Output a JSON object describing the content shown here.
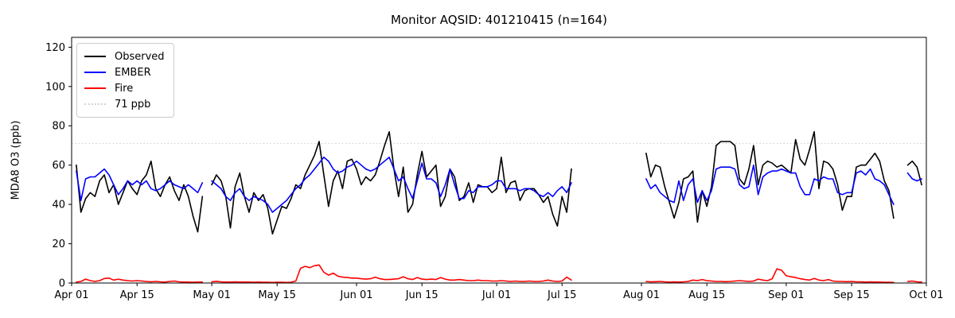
{
  "figure": {
    "title": "Monitor AQSID: 401210415 (n=164)",
    "ylabel": "MDA8 O3 (ppb)",
    "background": "#ffffff"
  },
  "legend": [
    {
      "label": "Observed",
      "color": "#000000",
      "style": "solid"
    },
    {
      "label": "EMBER",
      "color": "#0000ff",
      "style": "solid"
    },
    {
      "label": "Fire",
      "color": "#ff0000",
      "style": "solid"
    },
    {
      "label": "71 ppb",
      "color": "#d3d3d3",
      "style": "dotted"
    }
  ],
  "chart_data": {
    "type": "line",
    "title": "Monitor AQSID: 401210415 (n=164)",
    "xlabel": "",
    "ylabel": "MDA8 O3 (ppb)",
    "ylim": [
      0,
      125
    ],
    "y_ticks": [
      0,
      20,
      40,
      60,
      80,
      100,
      120
    ],
    "x_ticks": [
      {
        "label": "Apr 01",
        "day": 0
      },
      {
        "label": "Apr 15",
        "day": 14
      },
      {
        "label": "May 01",
        "day": 30
      },
      {
        "label": "May 15",
        "day": 44
      },
      {
        "label": "Jun 01",
        "day": 61
      },
      {
        "label": "Jun 15",
        "day": 75
      },
      {
        "label": "Jul 01",
        "day": 91
      },
      {
        "label": "Jul 15",
        "day": 105
      },
      {
        "label": "Aug 01",
        "day": 122
      },
      {
        "label": "Aug 15",
        "day": 136
      },
      {
        "label": "Sep 01",
        "day": 153
      },
      {
        "label": "Sep 15",
        "day": 167
      },
      {
        "label": "Oct 01",
        "day": 183
      }
    ],
    "threshold_ppb": 71,
    "legend_position": "upper left",
    "grid": false,
    "dates": [
      "Apr 01",
      "Apr 02",
      "Apr 03",
      "Apr 04",
      "Apr 05",
      "Apr 06",
      "Apr 07",
      "Apr 08",
      "Apr 09",
      "Apr 10",
      "Apr 11",
      "Apr 12",
      "Apr 13",
      "Apr 14",
      "Apr 15",
      "Apr 16",
      "Apr 17",
      "Apr 18",
      "Apr 19",
      "Apr 20",
      "Apr 21",
      "Apr 22",
      "Apr 23",
      "Apr 24",
      "Apr 25",
      "Apr 26",
      "Apr 27",
      "Apr 28",
      "Apr 29",
      "Apr 30",
      "May 01",
      "May 02",
      "May 03",
      "May 04",
      "May 05",
      "May 06",
      "May 07",
      "May 08",
      "May 09",
      "May 10",
      "May 11",
      "May 12",
      "May 13",
      "May 14",
      "May 15",
      "May 16",
      "May 17",
      "May 18",
      "May 19",
      "May 20",
      "May 21",
      "May 22",
      "May 23",
      "May 24",
      "May 25",
      "May 26",
      "May 27",
      "May 28",
      "May 29",
      "May 30",
      "May 31",
      "Jun 01",
      "Jun 02",
      "Jun 03",
      "Jun 04",
      "Jun 05",
      "Jun 06",
      "Jun 07",
      "Jun 08",
      "Jun 09",
      "Jun 10",
      "Jun 11",
      "Jun 12",
      "Jun 13",
      "Jun 14",
      "Jun 15",
      "Jun 16",
      "Jun 17",
      "Jun 18",
      "Jun 19",
      "Jun 20",
      "Jun 21",
      "Jun 22",
      "Jun 23",
      "Jun 24",
      "Jun 25",
      "Jun 26",
      "Jun 27",
      "Jun 28",
      "Jun 29",
      "Jun 30",
      "Jul 01",
      "Jul 02",
      "Jul 03",
      "Jul 04",
      "Jul 05",
      "Jul 06",
      "Jul 07",
      "Jul 08",
      "Jul 09",
      "Jul 10",
      "Jul 11",
      "Jul 12",
      "Jul 13",
      "Jul 14",
      "Jul 15",
      "Jul 16",
      "Jul 17",
      "Jul 18",
      "Jul 19",
      "Jul 20",
      "Jul 21",
      "Jul 22",
      "Jul 23",
      "Jul 24",
      "Jul 25",
      "Jul 26",
      "Jul 27",
      "Jul 28",
      "Jul 29",
      "Jul 30",
      "Jul 31",
      "Aug 01",
      "Aug 02",
      "Aug 03",
      "Aug 04",
      "Aug 05",
      "Aug 06",
      "Aug 07",
      "Aug 08",
      "Aug 09",
      "Aug 10",
      "Aug 11",
      "Aug 12",
      "Aug 13",
      "Aug 14",
      "Aug 15",
      "Aug 16",
      "Aug 17",
      "Aug 18",
      "Aug 19",
      "Aug 20",
      "Aug 21",
      "Aug 22",
      "Aug 23",
      "Aug 24",
      "Aug 25",
      "Aug 26",
      "Aug 27",
      "Aug 28",
      "Aug 29",
      "Aug 30",
      "Aug 31",
      "Sep 01",
      "Sep 02",
      "Sep 03",
      "Sep 04",
      "Sep 05",
      "Sep 06",
      "Sep 07",
      "Sep 08",
      "Sep 09",
      "Sep 10",
      "Sep 11",
      "Sep 12",
      "Sep 13",
      "Sep 14",
      "Sep 15",
      "Sep 16",
      "Sep 17",
      "Sep 18",
      "Sep 19",
      "Sep 20",
      "Sep 21",
      "Sep 22",
      "Sep 23",
      "Sep 24",
      "Sep 25",
      "Sep 26",
      "Sep 27",
      "Sep 28",
      "Sep 29",
      "Sep 30",
      "Oct 01"
    ],
    "series": [
      {
        "name": "Observed",
        "color": "#000000",
        "values": [
          null,
          60,
          36,
          43,
          46,
          44,
          52,
          55,
          46,
          50,
          40,
          46,
          52,
          48,
          45,
          52,
          55,
          62,
          48,
          44,
          50,
          54,
          47,
          42,
          50,
          44,
          34,
          26,
          44,
          null,
          50,
          55,
          52,
          44,
          28,
          49,
          56,
          44,
          36,
          46,
          42,
          45,
          38,
          25,
          32,
          39,
          38,
          43,
          50,
          48,
          55,
          60,
          65,
          72,
          55,
          39,
          52,
          57,
          48,
          62,
          63,
          58,
          50,
          54,
          52,
          55,
          62,
          70,
          77,
          58,
          44,
          59,
          36,
          40,
          55,
          67,
          54,
          57,
          60,
          39,
          44,
          58,
          54,
          42,
          44,
          51,
          41,
          50,
          49,
          49,
          46,
          48,
          64,
          46,
          51,
          52,
          42,
          47,
          48,
          48,
          45,
          41,
          44,
          35,
          29,
          44,
          36,
          58,
          null,
          null,
          null,
          null,
          null,
          null,
          null,
          null,
          null,
          null,
          null,
          null,
          null,
          null,
          null,
          66,
          54,
          60,
          59,
          49,
          41,
          33,
          41,
          53,
          54,
          57,
          31,
          47,
          39,
          49,
          70,
          72,
          72,
          72,
          70,
          53,
          50,
          58,
          70,
          50,
          60,
          62,
          61,
          59,
          60,
          58,
          56,
          73,
          63,
          60,
          68,
          77,
          48,
          62,
          61,
          58,
          50,
          37,
          44,
          44,
          59,
          60,
          60,
          63,
          66,
          62,
          52,
          47,
          33,
          null,
          null,
          60,
          62,
          59,
          50,
          null
        ]
      },
      {
        "name": "EMBER",
        "color": "#0000ff",
        "values": [
          null,
          57,
          42,
          53,
          54,
          54,
          56,
          58,
          55,
          50,
          45,
          48,
          52,
          50,
          52,
          50,
          52,
          48,
          47,
          48,
          50,
          52,
          50,
          49,
          48,
          50,
          48,
          46,
          51,
          null,
          52,
          50,
          48,
          44,
          42,
          46,
          48,
          44,
          42,
          44,
          43,
          42,
          40,
          36,
          38,
          40,
          42,
          45,
          48,
          50,
          53,
          55,
          58,
          61,
          64,
          62,
          58,
          56,
          57,
          59,
          60,
          62,
          60,
          58,
          57,
          58,
          60,
          62,
          64,
          58,
          52,
          54,
          48,
          43,
          52,
          61,
          53,
          53,
          51,
          44,
          50,
          58,
          50,
          43,
          43,
          47,
          46,
          49,
          49,
          49,
          50,
          52,
          52,
          48,
          48,
          48,
          47,
          48,
          48,
          47,
          45,
          44,
          46,
          44,
          47,
          49,
          46,
          51,
          null,
          null,
          null,
          null,
          null,
          null,
          null,
          null,
          null,
          null,
          null,
          null,
          null,
          null,
          null,
          53,
          48,
          50,
          46,
          44,
          42,
          41,
          52,
          42,
          50,
          53,
          41,
          47,
          42,
          47,
          58,
          59,
          59,
          59,
          58,
          50,
          48,
          49,
          60,
          45,
          54,
          56,
          57,
          57,
          58,
          57,
          56,
          56,
          49,
          45,
          45,
          53,
          52,
          54,
          53,
          53,
          46,
          45,
          46,
          46,
          56,
          57,
          55,
          58,
          53,
          52,
          50,
          45,
          40,
          null,
          null,
          56,
          53,
          52,
          53,
          null
        ]
      },
      {
        "name": "Fire",
        "color": "#ff0000",
        "values": [
          null,
          0.5,
          0.8,
          2,
          1.2,
          0.8,
          1.2,
          2.3,
          2.5,
          1.5,
          2,
          1.5,
          1.2,
          1,
          1.2,
          1,
          0.8,
          0.6,
          0.8,
          0.6,
          0.5,
          0.8,
          1,
          0.6,
          0.5,
          0.5,
          0.4,
          0.5,
          0.5,
          null,
          0.6,
          0.9,
          0.6,
          0.5,
          0.5,
          0.6,
          0.5,
          0.5,
          0.5,
          0.4,
          0.5,
          0.4,
          0.4,
          0.3,
          0.4,
          0.4,
          0.3,
          0.4,
          1,
          7.5,
          8.5,
          7.8,
          8.8,
          9.2,
          5.5,
          4,
          5,
          3.5,
          3,
          2.8,
          2.5,
          2.5,
          2.2,
          2,
          2.2,
          3,
          2.2,
          1.8,
          1.8,
          2,
          2.2,
          3.2,
          2.2,
          1.8,
          2.8,
          2,
          1.8,
          2,
          1.8,
          2.8,
          2,
          1.5,
          1.5,
          1.8,
          1.5,
          1.2,
          1.2,
          1.5,
          1.2,
          1.2,
          1,
          1,
          1.2,
          1,
          0.8,
          1,
          0.8,
          0.8,
          1,
          0.8,
          0.8,
          1,
          1.5,
          1,
          0.8,
          1,
          3,
          1.5,
          null,
          null,
          null,
          null,
          null,
          null,
          null,
          null,
          null,
          null,
          null,
          null,
          null,
          null,
          null,
          0.8,
          0.6,
          0.7,
          0.8,
          0.6,
          0.5,
          0.6,
          0.5,
          0.6,
          0.8,
          1.5,
          1.2,
          1.8,
          1.2,
          1,
          0.8,
          0.8,
          0.7,
          0.8,
          1,
          1.2,
          1,
          0.8,
          1,
          2,
          1.5,
          1.2,
          2.2,
          7.2,
          6.5,
          3.7,
          3.2,
          2.8,
          2.2,
          1.8,
          1.5,
          2.3,
          1.5,
          1.2,
          1.8,
          1,
          0.8,
          0.8,
          0.7,
          0.8,
          0.6,
          0.6,
          0.5,
          0.6,
          0.5,
          0.5,
          0.4,
          0.4,
          0.3,
          null,
          null,
          0.8,
          1,
          0.6,
          0.5,
          null
        ]
      }
    ]
  }
}
